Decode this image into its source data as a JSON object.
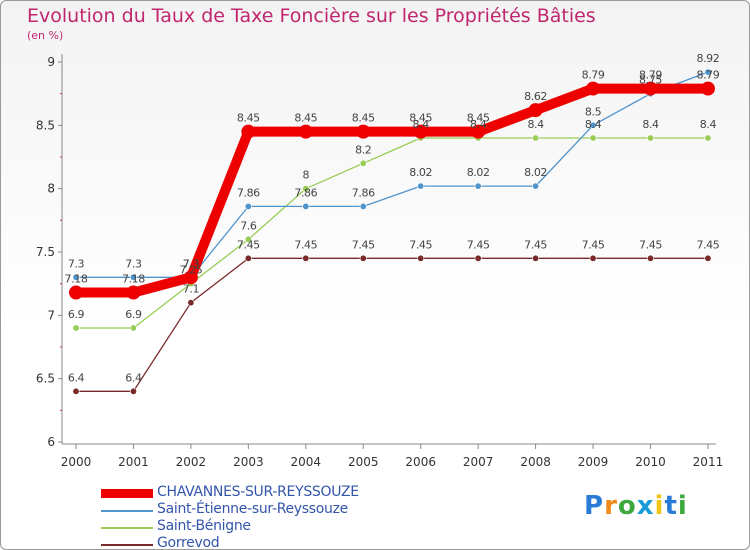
{
  "chart_data": {
    "type": "line",
    "title": "Evolution du Taux de Taxe Foncière sur les Propriétés Bâties",
    "subtitle": "(en %)",
    "xlabel": "",
    "ylabel": "",
    "ylim": [
      6,
      9
    ],
    "yticks": [
      "6",
      "6.5",
      "7",
      "7.5",
      "8",
      "8.5",
      "9"
    ],
    "grid": false,
    "categories": [
      "2000",
      "2001",
      "2002",
      "2003",
      "2004",
      "2005",
      "2006",
      "2007",
      "2008",
      "2009",
      "2010",
      "2011"
    ],
    "series": [
      {
        "name": "CHAVANNES-SUR-REYSSOUZE",
        "color": "#ee0000",
        "values": [
          7.18,
          7.18,
          7.3,
          8.45,
          8.45,
          8.45,
          8.45,
          8.45,
          8.62,
          8.79,
          8.79,
          8.79
        ],
        "labels": [
          "7.18",
          "7.18",
          "7.3",
          "8.45",
          "8.45",
          "8.45",
          "8.45",
          "8.45",
          "8.62",
          "8.79",
          "8.79",
          "8.79"
        ]
      },
      {
        "name": "Saint-Étienne-sur-Reyssouze",
        "color": "#4f94cd",
        "values": [
          7.3,
          7.3,
          7.3,
          7.86,
          7.86,
          7.86,
          8.02,
          8.02,
          8.02,
          8.5,
          8.75,
          8.92
        ],
        "labels": [
          "7.3",
          "7.3",
          "7.3",
          "7.86",
          "7.86",
          "7.86",
          "8.02",
          "8.02",
          "8.02",
          "8.5",
          "8.75",
          "8.92"
        ]
      },
      {
        "name": "Saint-Bénigne",
        "color": "#99cc55",
        "values": [
          6.9,
          6.9,
          7.25,
          7.6,
          8.0,
          8.2,
          8.4,
          8.4,
          8.4,
          8.4,
          8.4,
          8.4
        ],
        "labels": [
          "6.9",
          "6.9",
          "7.25",
          "7.6",
          "8",
          "8.2",
          "8.4",
          "8.4",
          "8.4",
          "8.4",
          "8.4",
          "8.4"
        ]
      },
      {
        "name": "Gorrevod",
        "color": "#7a2a2a",
        "values": [
          6.4,
          6.4,
          7.1,
          7.45,
          7.45,
          7.45,
          7.45,
          7.45,
          7.45,
          7.45,
          7.45,
          7.45
        ],
        "labels": [
          "6.4",
          "6.4",
          "7.1",
          "7.45",
          "7.45",
          "7.45",
          "7.45",
          "7.45",
          "7.45",
          "7.45",
          "7.45",
          "7.45"
        ]
      }
    ]
  },
  "logo": {
    "text": "Proxiti",
    "colors": [
      "#2a7bd6",
      "#f08a1c",
      "#3ea83e",
      "#1a9bd7",
      "#f0c419",
      "#2a7bd6",
      "#3ea83e"
    ]
  }
}
